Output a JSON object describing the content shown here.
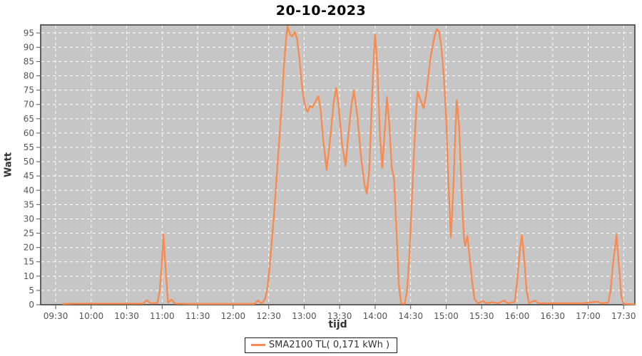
{
  "window": {
    "title": "20-10-2023"
  },
  "colors": {
    "series_line": "#f88b51",
    "plot_background": "#c6c6c6",
    "gridline": "#ffffff",
    "plot_border": "#333333",
    "tick_label": "#555555",
    "axis_title": "#333333",
    "title": "#000000"
  },
  "legend": {
    "label": "SMA2100 TL( 0,171 kWh )"
  },
  "chart_data": {
    "type": "line",
    "title": "20-10-2023",
    "xlabel": "tijd",
    "ylabel": "Watt",
    "grid": true,
    "legend_position": "bottom-center",
    "plot_bg": "#c6c6c6",
    "grid_color": "#ffffff",
    "x_domain_minutes": [
      557.3,
      1059.5
    ],
    "x_tick_labels": [
      "09:30",
      "10:00",
      "10:30",
      "11:00",
      "11:30",
      "12:00",
      "12:30",
      "13:00",
      "13:30",
      "14:00",
      "14:30",
      "15:00",
      "15:30",
      "16:00",
      "16:30",
      "17:00",
      "17:30"
    ],
    "y_ticks": [
      0,
      5,
      10,
      15,
      20,
      25,
      30,
      35,
      40,
      45,
      50,
      55,
      60,
      65,
      70,
      75,
      80,
      85,
      90,
      95
    ],
    "ylim": [
      0,
      97.8
    ],
    "series": [
      {
        "name": "SMA2100 TL( 0,171 kWh )",
        "color": "#f88b51",
        "points": [
          [
            "09:36",
            0.3
          ],
          [
            "09:45",
            0.4
          ],
          [
            "10:00",
            0.4
          ],
          [
            "10:15",
            0.4
          ],
          [
            "10:30",
            0.4
          ],
          [
            "10:44",
            0.4
          ],
          [
            "10:47",
            1.6
          ],
          [
            "10:50",
            0.5
          ],
          [
            "10:56",
            0.6
          ],
          [
            "10:58",
            5
          ],
          [
            "11:00",
            16
          ],
          [
            "11:01",
            24.6
          ],
          [
            "11:03",
            12
          ],
          [
            "11:05",
            0.8
          ],
          [
            "11:08",
            1.8
          ],
          [
            "11:11",
            0.4
          ],
          [
            "11:25",
            0.3
          ],
          [
            "11:45",
            0.3
          ],
          [
            "12:05",
            0.3
          ],
          [
            "12:18",
            0.3
          ],
          [
            "12:21",
            1.5
          ],
          [
            "12:24",
            0.4
          ],
          [
            "12:27",
            2
          ],
          [
            "12:29",
            6
          ],
          [
            "12:31",
            14
          ],
          [
            "12:33",
            24
          ],
          [
            "12:35",
            34
          ],
          [
            "12:37",
            46
          ],
          [
            "12:39",
            58
          ],
          [
            "12:41",
            70
          ],
          [
            "12:43",
            84
          ],
          [
            "12:45",
            94
          ],
          [
            "12:46",
            97.3
          ],
          [
            "12:48",
            94.5
          ],
          [
            "12:50",
            93.8
          ],
          [
            "12:52",
            95.3
          ],
          [
            "12:54",
            93
          ],
          [
            "12:56",
            86
          ],
          [
            "12:58",
            77
          ],
          [
            "13:00",
            71
          ],
          [
            "13:02",
            68
          ],
          [
            "13:03",
            67.5
          ],
          [
            "13:05",
            69.5
          ],
          [
            "13:07",
            69
          ],
          [
            "13:09",
            70.5
          ],
          [
            "13:12",
            72.9
          ],
          [
            "13:14",
            68
          ],
          [
            "13:16",
            58
          ],
          [
            "13:19",
            47.2
          ],
          [
            "13:22",
            58
          ],
          [
            "13:25",
            71
          ],
          [
            "13:27",
            75.8
          ],
          [
            "13:29",
            70
          ],
          [
            "13:32",
            56
          ],
          [
            "13:35",
            48.5
          ],
          [
            "13:37",
            58
          ],
          [
            "13:40",
            70
          ],
          [
            "13:42",
            74.9
          ],
          [
            "13:45",
            66
          ],
          [
            "13:48",
            52
          ],
          [
            "13:51",
            42
          ],
          [
            "13:53",
            38.8
          ],
          [
            "13:55",
            47
          ],
          [
            "13:57",
            68
          ],
          [
            "13:59",
            88
          ],
          [
            "14:00",
            94.5
          ],
          [
            "14:02",
            82
          ],
          [
            "14:04",
            60
          ],
          [
            "14:06",
            47.8
          ],
          [
            "14:08",
            60
          ],
          [
            "14:10",
            72.6
          ],
          [
            "14:12",
            63
          ],
          [
            "14:14",
            48
          ],
          [
            "14:16",
            44
          ],
          [
            "14:18",
            26
          ],
          [
            "14:20",
            7
          ],
          [
            "14:22",
            0.4
          ],
          [
            "14:25",
            0.4
          ],
          [
            "14:27",
            5
          ],
          [
            "14:29",
            18
          ],
          [
            "14:31",
            36
          ],
          [
            "14:33",
            55
          ],
          [
            "14:35",
            70
          ],
          [
            "14:36",
            74.3
          ],
          [
            "14:38",
            72
          ],
          [
            "14:41",
            68.7
          ],
          [
            "14:43",
            73
          ],
          [
            "14:45",
            80
          ],
          [
            "14:47",
            87
          ],
          [
            "14:50",
            93.5
          ],
          [
            "14:52",
            96.3
          ],
          [
            "14:54",
            95.5
          ],
          [
            "14:56",
            90
          ],
          [
            "14:58",
            80
          ],
          [
            "15:00",
            66
          ],
          [
            "15:02",
            42
          ],
          [
            "15:04",
            23.5
          ],
          [
            "15:06",
            40
          ],
          [
            "15:08",
            63
          ],
          [
            "15:09",
            71.6
          ],
          [
            "15:11",
            62
          ],
          [
            "15:13",
            40
          ],
          [
            "15:15",
            24
          ],
          [
            "15:16",
            20.5
          ],
          [
            "15:18",
            24
          ],
          [
            "15:20",
            16
          ],
          [
            "15:22",
            8
          ],
          [
            "15:24",
            2
          ],
          [
            "15:27",
            0.4
          ],
          [
            "15:31",
            1.4
          ],
          [
            "15:34",
            0.5
          ],
          [
            "15:39",
            0.9
          ],
          [
            "15:44",
            0.5
          ],
          [
            "15:49",
            1.5
          ],
          [
            "15:52",
            0.5
          ],
          [
            "15:58",
            1
          ],
          [
            "16:00",
            8
          ],
          [
            "16:02",
            18
          ],
          [
            "16:04",
            24.3
          ],
          [
            "16:06",
            16
          ],
          [
            "16:08",
            5
          ],
          [
            "16:10",
            0.6
          ],
          [
            "16:15",
            1.5
          ],
          [
            "16:18",
            0.5
          ],
          [
            "16:35",
            0.5
          ],
          [
            "16:55",
            0.5
          ],
          [
            "17:08",
            1.1
          ],
          [
            "17:11",
            0.5
          ],
          [
            "17:17",
            0.7
          ],
          [
            "17:19",
            5
          ],
          [
            "17:21",
            14
          ],
          [
            "17:24",
            24.5
          ],
          [
            "17:26",
            14
          ],
          [
            "17:28",
            3
          ],
          [
            "17:30",
            0.3
          ],
          [
            "17:39",
            0.2
          ]
        ]
      }
    ]
  }
}
